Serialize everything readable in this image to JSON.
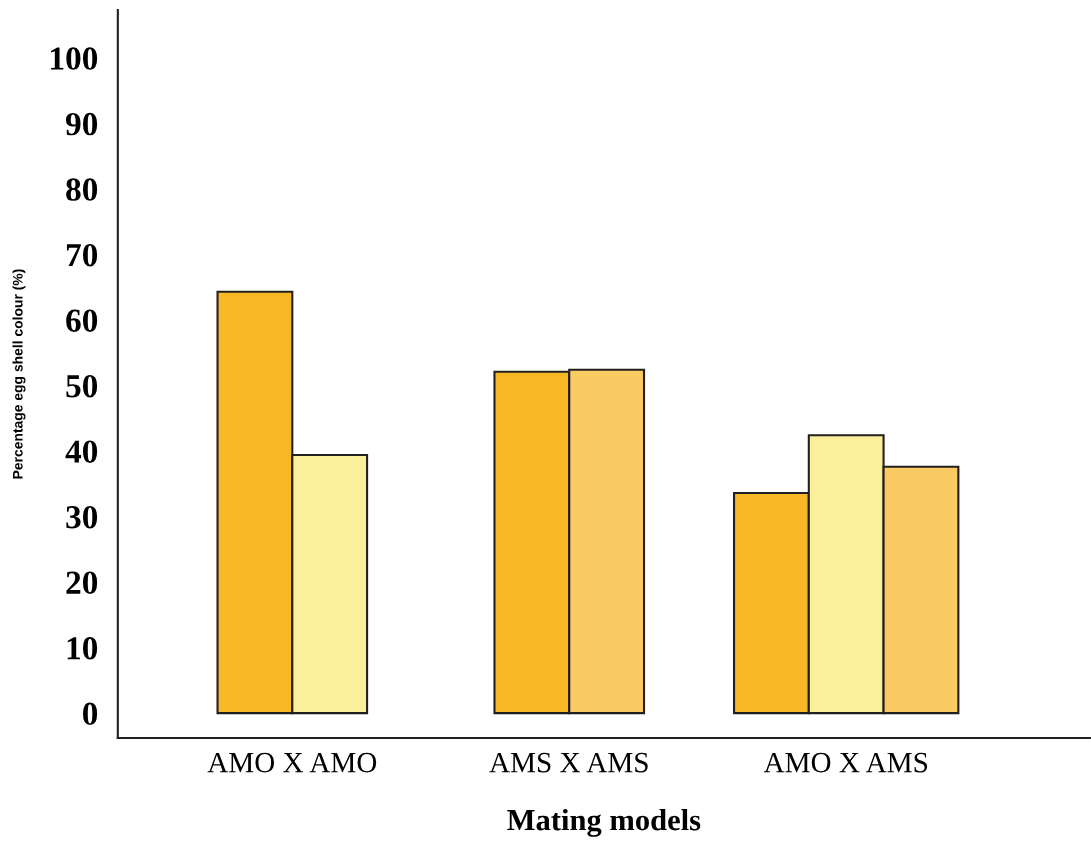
{
  "chart_data": {
    "type": "bar",
    "xlabel": "Mating models",
    "ylabel": "Percentage egg shell colour (%)",
    "categories": [
      "AMO X AMO",
      "AMS X AMS",
      "AMO X AMS"
    ],
    "series": [
      {
        "color": "#f7b825",
        "values": [
          64.3,
          52.1,
          33.6
        ]
      },
      {
        "color": "#faef9a",
        "values": [
          39.4,
          null,
          42.4
        ]
      },
      {
        "color": "#f9cb62",
        "values": [
          null,
          52.4,
          37.6
        ]
      }
    ],
    "ylim": [
      -3.8,
      107.3
    ],
    "yticks": [
      0,
      10,
      20,
      30,
      40,
      50,
      60,
      70,
      80,
      90,
      100
    ],
    "grid": false,
    "legend": false
  }
}
